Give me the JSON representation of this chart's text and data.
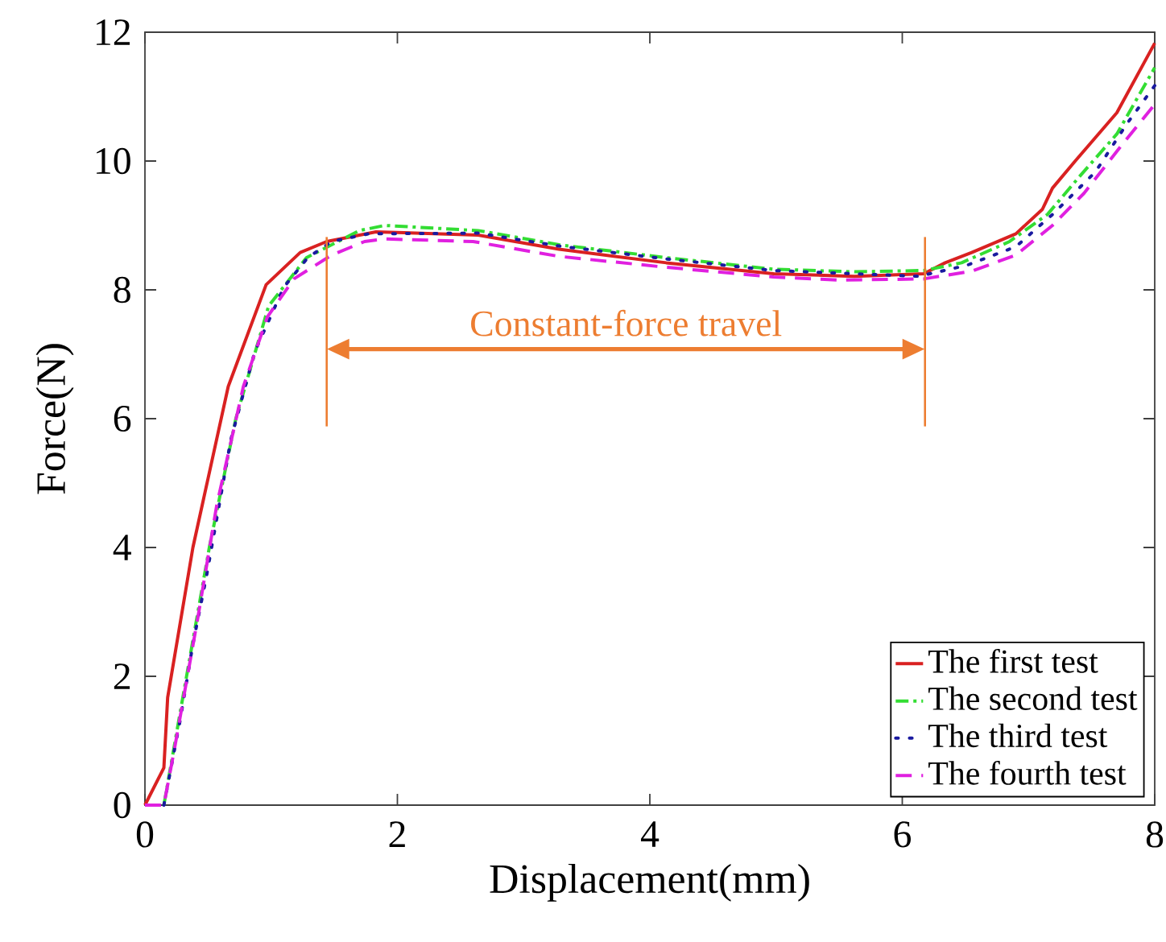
{
  "chart_data": {
    "type": "line",
    "xlabel": "Displacement(mm)",
    "ylabel": "Force(N)",
    "xlim": [
      0,
      8
    ],
    "ylim": [
      0,
      12
    ],
    "xticks": [
      0,
      2,
      4,
      6,
      8
    ],
    "yticks": [
      0,
      2,
      4,
      6,
      8,
      10,
      12
    ],
    "grid": false,
    "legend": "bottom right",
    "marker": "none",
    "ref_lines": [
      {
        "axis": "x",
        "value": 1.44,
        "color": "#ed7d31"
      },
      {
        "axis": "x",
        "value": 6.18,
        "color": "#ed7d31"
      }
    ],
    "annotations": [
      "Constant-force travel"
    ],
    "series": [
      {
        "name": "The first test",
        "color": "#d92121",
        "line_style": "solid",
        "x": [
          0,
          0.15,
          0.18,
          0.38,
          0.66,
          0.96,
          1.23,
          1.44,
          1.83,
          2.64,
          3.28,
          4.13,
          4.98,
          5.62,
          6.17,
          6.34,
          6.55,
          6.9,
          7.11,
          7.19,
          7.37,
          7.7,
          8
        ],
        "values": [
          0,
          0.58,
          1.67,
          4.0,
          6.5,
          8.08,
          8.58,
          8.75,
          8.9,
          8.85,
          8.63,
          8.42,
          8.25,
          8.21,
          8.25,
          8.42,
          8.58,
          8.87,
          9.25,
          9.58,
          10.0,
          10.75,
          11.83
        ]
      },
      {
        "name": "The second test",
        "color": "#33dd33",
        "line_style": "dashdot",
        "x": [
          0.15,
          0.3,
          0.51,
          0.72,
          0.98,
          1.28,
          1.7,
          1.9,
          2.64,
          3.28,
          4.13,
          4.98,
          5.62,
          6.17,
          6.47,
          6.85,
          7.15,
          7.4,
          7.7,
          8
        ],
        "values": [
          0,
          1.67,
          4.0,
          6.0,
          7.75,
          8.5,
          8.92,
          9.0,
          8.92,
          8.7,
          8.5,
          8.32,
          8.28,
          8.3,
          8.42,
          8.75,
          9.17,
          9.75,
          10.42,
          11.45
        ]
      },
      {
        "name": "The third test",
        "color": "#1a1aa0",
        "line_style": "dotted",
        "x": [
          0.15,
          0.28,
          0.38,
          0.49,
          0.68,
          0.87,
          1.1,
          1.29,
          1.48,
          1.77,
          2.64,
          3.28,
          4.13,
          4.98,
          5.62,
          6.13,
          6.51,
          6.9,
          7.19,
          7.53,
          7.78,
          8
        ],
        "values": [
          0,
          1.33,
          2.5,
          3.58,
          5.67,
          7.04,
          8.04,
          8.5,
          8.75,
          8.87,
          8.88,
          8.68,
          8.48,
          8.3,
          8.25,
          8.21,
          8.38,
          8.67,
          9.17,
          9.83,
          10.58,
          11.17
        ]
      },
      {
        "name": "The fourth test",
        "color": "#e020e0",
        "line_style": "dashed",
        "x": [
          0,
          0.15,
          0.23,
          0.42,
          0.57,
          0.78,
          0.97,
          1.18,
          1.48,
          1.74,
          1.9,
          2.6,
          3.28,
          4.13,
          4.98,
          5.5,
          6.17,
          6.55,
          6.9,
          7.19,
          7.44,
          7.74,
          8
        ],
        "values": [
          0,
          0,
          0.83,
          2.92,
          4.67,
          6.5,
          7.58,
          8.17,
          8.54,
          8.75,
          8.79,
          8.75,
          8.52,
          8.35,
          8.2,
          8.15,
          8.17,
          8.29,
          8.54,
          9.0,
          9.5,
          10.25,
          10.88
        ]
      }
    ]
  }
}
